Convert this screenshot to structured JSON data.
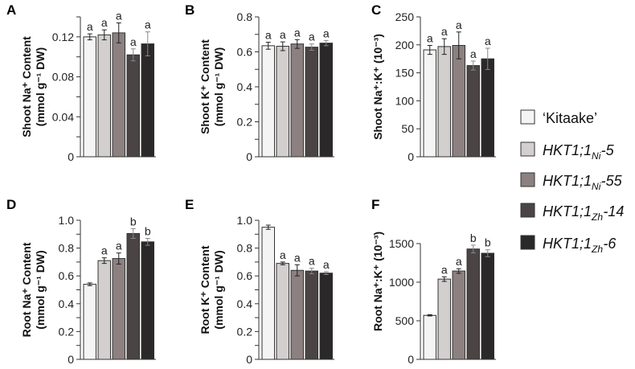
{
  "legend": [
    {
      "parts": [
        {
          "t": "‘Kitaake’",
          "sub": false,
          "italic": false
        }
      ],
      "color": "#f4f4f4"
    },
    {
      "parts": [
        {
          "t": "HKT1;1",
          "sub": false,
          "italic": true
        },
        {
          "t": "Ni",
          "sub": true,
          "italic": true
        },
        {
          "t": "-5",
          "sub": false,
          "italic": true
        }
      ],
      "color": "#d3cfcf"
    },
    {
      "parts": [
        {
          "t": "HKT1;1",
          "sub": false,
          "italic": true
        },
        {
          "t": "Ni",
          "sub": true,
          "italic": true
        },
        {
          "t": "-55",
          "sub": false,
          "italic": true
        }
      ],
      "color": "#8c8080"
    },
    {
      "parts": [
        {
          "t": "HKT1;1",
          "sub": false,
          "italic": true
        },
        {
          "t": "Zh",
          "sub": true,
          "italic": true
        },
        {
          "t": "-14",
          "sub": false,
          "italic": true
        }
      ],
      "color": "#4a4444"
    },
    {
      "parts": [
        {
          "t": "HKT1;1",
          "sub": false,
          "italic": true
        },
        {
          "t": "Zh",
          "sub": true,
          "italic": true
        },
        {
          "t": "-6",
          "sub": false,
          "italic": true
        }
      ],
      "color": "#2a2828"
    }
  ],
  "chart_data": [
    {
      "panel": "A",
      "type": "bar",
      "ylabel": [
        "Shoot Na⁺ Content",
        "(mmol g⁻¹ DW)"
      ],
      "ylim": [
        0,
        0.14
      ],
      "yticks_labeled": [
        "0",
        "0.04",
        "0.08",
        "0.12"
      ],
      "ytick_values": [
        0,
        0.04,
        0.08,
        0.12
      ],
      "minor_step": 0.02,
      "values": [
        0.12,
        0.122,
        0.124,
        0.102,
        0.113
      ],
      "errors": [
        0.003,
        0.005,
        0.01,
        0.006,
        0.012
      ],
      "letters": [
        "a",
        "a",
        "a",
        "a",
        "a"
      ]
    },
    {
      "panel": "B",
      "type": "bar",
      "ylabel": [
        "Shoot K⁺ Content",
        "(mmol g⁻¹ DW)"
      ],
      "ylim": [
        0,
        0.8
      ],
      "yticks_labeled": [
        "0",
        "0.2",
        "0.4",
        "0.6",
        "0.8"
      ],
      "ytick_values": [
        0,
        0.2,
        0.4,
        0.6,
        0.8
      ],
      "minor_step": 0.1,
      "values": [
        0.635,
        0.632,
        0.645,
        0.627,
        0.65
      ],
      "errors": [
        0.02,
        0.025,
        0.025,
        0.018,
        0.015
      ],
      "letters": [
        "a",
        "a",
        "a",
        "a",
        "a"
      ]
    },
    {
      "panel": "C",
      "type": "bar",
      "ylabel": [
        "Shoot Na⁺:K⁺ (10⁻³)"
      ],
      "ylim": [
        0,
        250
      ],
      "yticks_labeled": [
        "0",
        "50",
        "100",
        "150",
        "200",
        "250"
      ],
      "ytick_values": [
        0,
        50,
        100,
        150,
        200,
        250
      ],
      "minor_step": 50,
      "values": [
        191,
        197,
        199,
        163,
        175
      ],
      "errors": [
        8,
        14,
        24,
        8,
        19
      ],
      "letters": [
        "a",
        "a",
        "a",
        "a",
        "a"
      ]
    },
    {
      "panel": "D",
      "type": "bar",
      "ylabel": [
        "Root Na⁺ Content",
        "(mmol g⁻¹ DW)"
      ],
      "ylim": [
        0,
        1.0
      ],
      "yticks_labeled": [
        "0",
        "0.2",
        "0.4",
        "0.6",
        "0.8",
        "1.0"
      ],
      "ytick_values": [
        0,
        0.2,
        0.4,
        0.6,
        0.8,
        1.0
      ],
      "minor_step": 0.1,
      "values": [
        0.54,
        0.71,
        0.725,
        0.905,
        0.845
      ],
      "errors": [
        0.01,
        0.02,
        0.04,
        0.035,
        0.025
      ],
      "letters": [
        "",
        "a",
        "a",
        "b",
        "b"
      ]
    },
    {
      "panel": "E",
      "type": "bar",
      "ylabel": [
        "Root K⁺ Content",
        "(mmol g⁻¹ DW)"
      ],
      "ylim": [
        0,
        1.0
      ],
      "yticks_labeled": [
        "0",
        "0.2",
        "0.4",
        "0.6",
        "0.8",
        "1.0"
      ],
      "ytick_values": [
        0,
        0.2,
        0.4,
        0.6,
        0.8,
        1.0
      ],
      "minor_step": 0.1,
      "values": [
        0.95,
        0.69,
        0.64,
        0.635,
        0.62
      ],
      "errors": [
        0.015,
        0.01,
        0.04,
        0.02,
        0.01
      ],
      "letters": [
        "",
        "a",
        "a",
        "a",
        "a"
      ]
    },
    {
      "panel": "F",
      "type": "bar",
      "ylabel": [
        "Root Na⁺:K⁺ (10⁻³)"
      ],
      "ylim": [
        0,
        1500
      ],
      "yticks_labeled": [
        "0",
        "500",
        "1000",
        "1500"
      ],
      "ytick_values": [
        0,
        500,
        1000,
        1500
      ],
      "minor_step": 500,
      "values": [
        570,
        1040,
        1145,
        1430,
        1375
      ],
      "errors": [
        8,
        30,
        30,
        50,
        45
      ],
      "letters": [
        "",
        "a",
        "a",
        "b",
        "b"
      ]
    }
  ]
}
